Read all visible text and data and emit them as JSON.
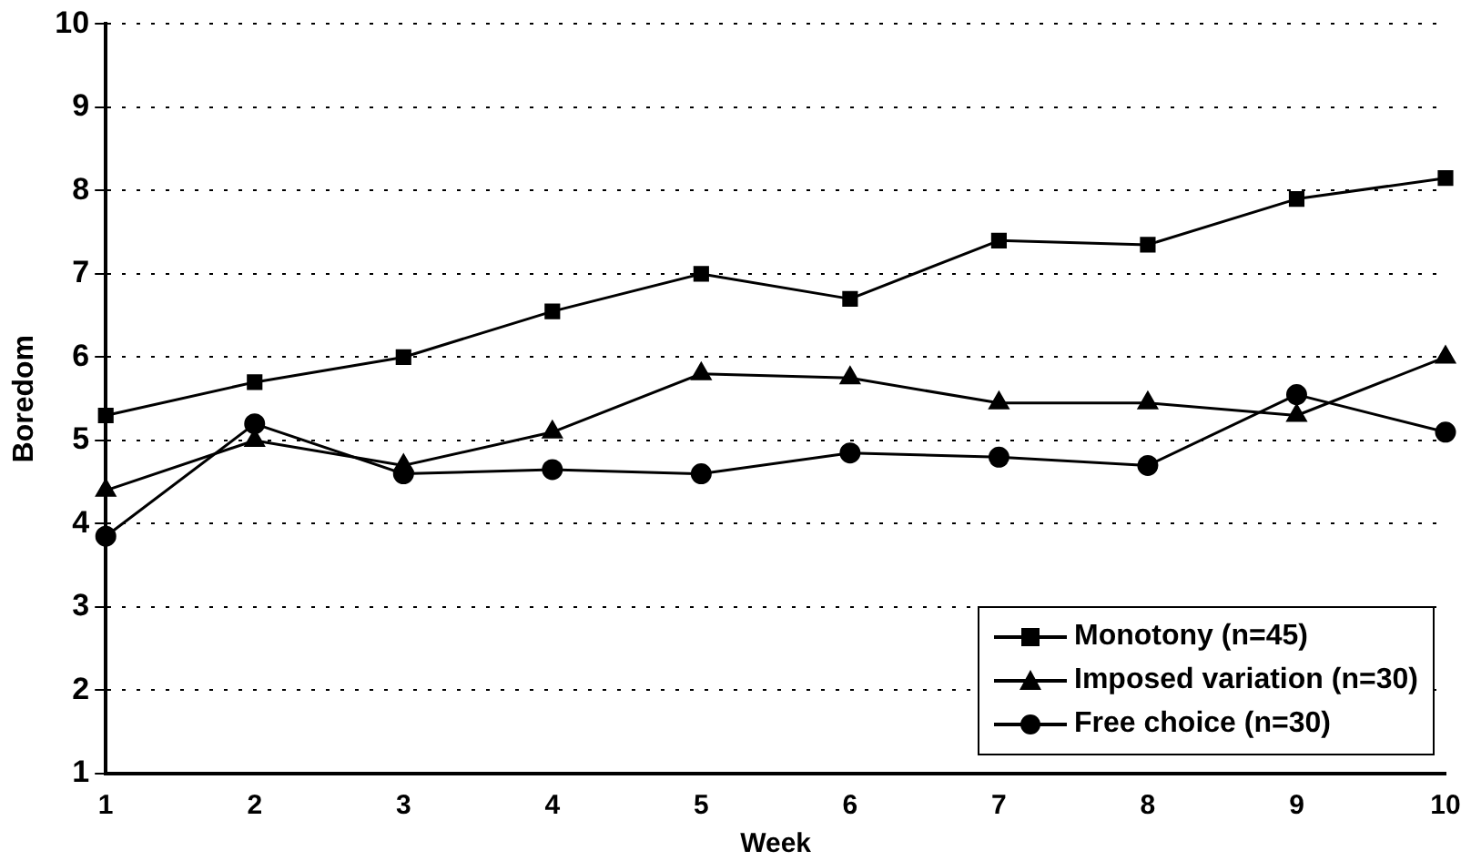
{
  "chart_data": {
    "type": "line",
    "xlabel": "Week",
    "ylabel": "Boredom",
    "x": [
      1,
      2,
      3,
      4,
      5,
      6,
      7,
      8,
      9,
      10
    ],
    "xlim": [
      1,
      10
    ],
    "xticks": [
      1,
      2,
      3,
      4,
      5,
      6,
      7,
      8,
      9,
      10
    ],
    "ylim": [
      1,
      10
    ],
    "yticks": [
      1,
      2,
      3,
      4,
      5,
      6,
      7,
      8,
      9,
      10
    ],
    "grid": "y",
    "legend": "bottom right",
    "line_style": "solid",
    "series": [
      {
        "name": "Monotony (n=45)",
        "color": "#000000",
        "marker": "square",
        "values": [
          5.3,
          5.7,
          6.0,
          6.55,
          7.0,
          6.7,
          7.4,
          7.35,
          7.9,
          8.15
        ]
      },
      {
        "name": "Imposed variation (n=30)",
        "color": "#000000",
        "marker": "triangle",
        "values": [
          4.4,
          5.0,
          4.7,
          5.1,
          5.8,
          5.75,
          5.45,
          5.45,
          5.3,
          6.0
        ]
      },
      {
        "name": "Free choice (n=30)",
        "color": "#000000",
        "marker": "circle",
        "values": [
          3.85,
          5.2,
          4.6,
          4.65,
          4.6,
          4.85,
          4.8,
          4.7,
          5.55,
          5.1
        ]
      }
    ]
  }
}
